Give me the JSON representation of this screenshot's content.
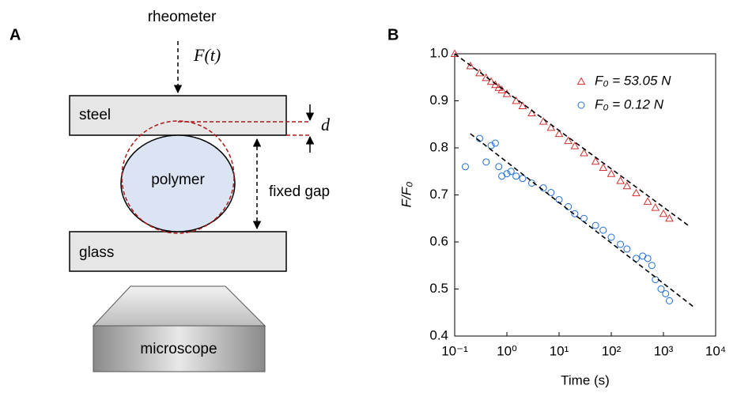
{
  "panels": {
    "a": "A",
    "b": "B"
  },
  "diagram": {
    "rheometer": "rheometer",
    "force": "F(t)",
    "steel": "steel",
    "d": "d",
    "polymer": "polymer",
    "fixed_gap": "fixed gap",
    "glass": "glass",
    "microscope": "microscope"
  },
  "chart_data": {
    "type": "scatter",
    "xlabel": "Time (s)",
    "ylabel": "F/F₀",
    "xscale": "log",
    "xlim": [
      0.1,
      10000
    ],
    "xticks": [
      {
        "value": 0.1,
        "label": "10⁻¹"
      },
      {
        "value": 1,
        "label": "10⁰"
      },
      {
        "value": 10,
        "label": "10¹"
      },
      {
        "value": 100,
        "label": "10²"
      },
      {
        "value": 1000,
        "label": "10³"
      },
      {
        "value": 10000,
        "label": "10⁴"
      }
    ],
    "ylim": [
      0.4,
      1.0
    ],
    "yticks": [
      0.4,
      0.5,
      0.6,
      0.7,
      0.8,
      0.9,
      {
        "value": 1,
        "label": "1.0"
      }
    ],
    "legend": "upper right",
    "series": [
      {
        "name": "F₀ = 53.05 N",
        "color": "#d03030",
        "marker": "triangle",
        "x": [
          0.1,
          0.2,
          0.3,
          0.4,
          0.5,
          0.6,
          0.7,
          0.8,
          1,
          1.5,
          2,
          3,
          5,
          7,
          10,
          15,
          20,
          30,
          50,
          70,
          100,
          150,
          200,
          300,
          500,
          700,
          1000,
          1300
        ],
        "values": [
          1.0,
          0.974,
          0.959,
          0.949,
          0.941,
          0.934,
          0.928,
          0.923,
          0.915,
          0.9,
          0.889,
          0.874,
          0.856,
          0.843,
          0.83,
          0.815,
          0.804,
          0.789,
          0.771,
          0.758,
          0.745,
          0.73,
          0.719,
          0.704,
          0.686,
          0.673,
          0.66,
          0.65
        ]
      },
      {
        "name": "F₀ = 0.12 N",
        "color": "#1f6fd8",
        "marker": "circle",
        "x": [
          0.16,
          0.3,
          0.4,
          0.5,
          0.6,
          0.7,
          0.8,
          1,
          1.2,
          1.5,
          2,
          3,
          5,
          7,
          10,
          15,
          20,
          30,
          50,
          70,
          100,
          150,
          200,
          300,
          400,
          500,
          600,
          700,
          900,
          1100,
          1300
        ],
        "values": [
          0.76,
          0.82,
          0.77,
          0.805,
          0.81,
          0.76,
          0.74,
          0.745,
          0.75,
          0.74,
          0.735,
          0.725,
          0.715,
          0.705,
          0.69,
          0.675,
          0.66,
          0.65,
          0.635,
          0.625,
          0.61,
          0.595,
          0.585,
          0.565,
          0.57,
          0.565,
          0.55,
          0.52,
          0.5,
          0.49,
          0.475
        ]
      }
    ],
    "fit_lines": [
      {
        "x": [
          0.1,
          3000
        ],
        "y": [
          1.0,
          0.635
        ]
      },
      {
        "x": [
          0.2,
          4000
        ],
        "y": [
          0.83,
          0.46
        ]
      }
    ]
  }
}
